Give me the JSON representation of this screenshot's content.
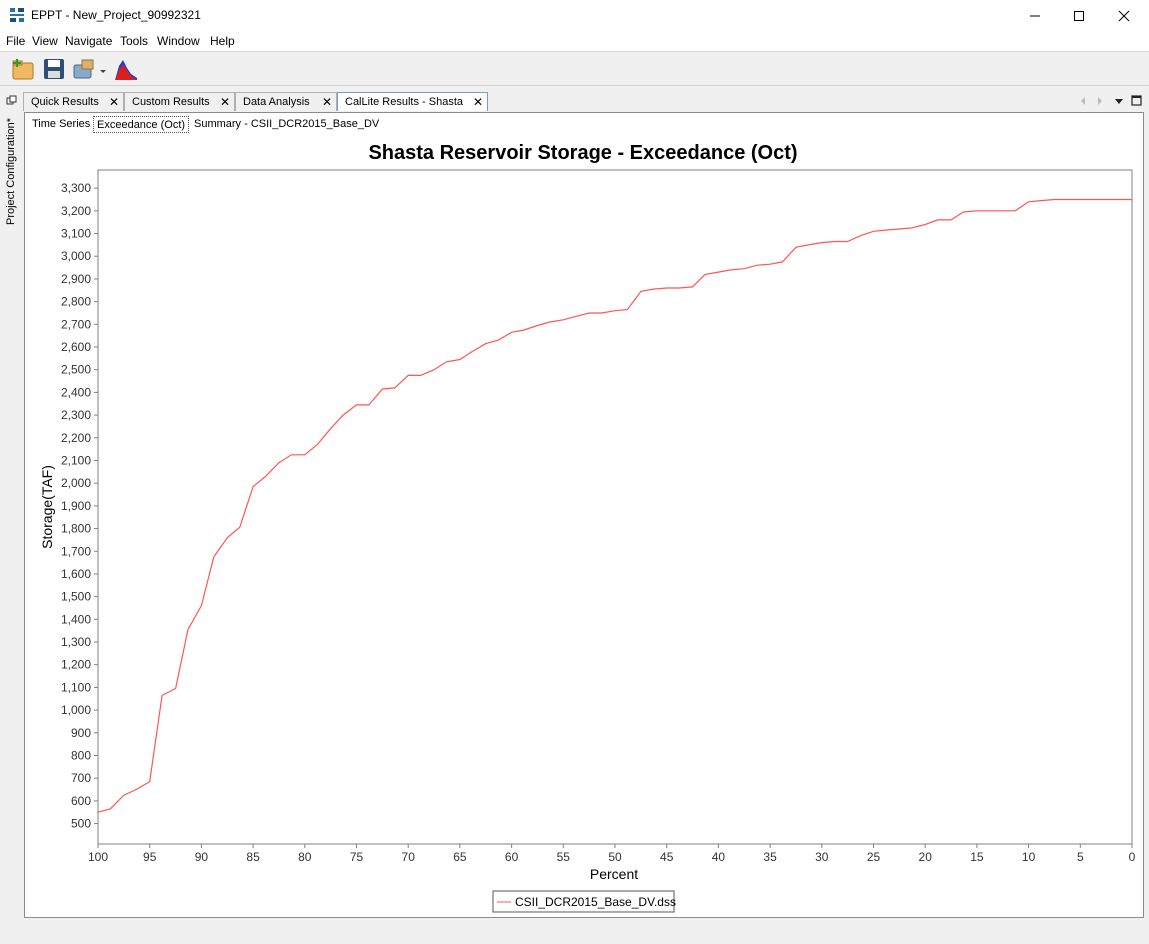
{
  "window": {
    "title": "EPPT - New_Project_90992321",
    "minimize_icon": "minimize-icon",
    "maximize_icon": "maximize-icon",
    "close_icon": "close-icon"
  },
  "menu": [
    "File",
    "View",
    "Navigate",
    "Tools",
    "Window",
    "Help"
  ],
  "toolbar": {
    "icons": [
      "new-project-icon",
      "save-icon",
      "open-project-icon",
      "dropdown-arrow-icon",
      "plot-icon"
    ]
  },
  "side_panel": {
    "label": "Project Configuration*"
  },
  "editor_tabs": [
    {
      "label": "Quick Results",
      "active": false
    },
    {
      "label": "Custom Results",
      "active": false
    },
    {
      "label": "Data Analysis",
      "active": false
    },
    {
      "label": "CalLite Results - Shasta",
      "active": true
    }
  ],
  "sub_tabs": [
    {
      "label": "Time Series",
      "active": false
    },
    {
      "label": "Exceedance (Oct)",
      "active": true
    },
    {
      "label": "Summary - CSII_DCR2015_Base_DV",
      "active": false
    }
  ],
  "chart_data": {
    "type": "line",
    "title": "Shasta Reservoir Storage - Exceedance (Oct)",
    "xlabel": "Percent",
    "ylabel": "Storage(TAF)",
    "xlim": [
      100,
      0
    ],
    "ylim": [
      410,
      3380
    ],
    "x_ticks": [
      100,
      95,
      90,
      85,
      80,
      75,
      70,
      65,
      60,
      55,
      50,
      45,
      40,
      35,
      30,
      25,
      20,
      15,
      10,
      5,
      0
    ],
    "y_ticks": [
      "500",
      "600",
      "700",
      "800",
      "900",
      "1,000",
      "1,100",
      "1,200",
      "1,300",
      "1,400",
      "1,500",
      "1,600",
      "1,700",
      "1,800",
      "1,900",
      "2,000",
      "2,100",
      "2,200",
      "2,300",
      "2,400",
      "2,500",
      "2,600",
      "2,700",
      "2,800",
      "2,900",
      "3,000",
      "3,100",
      "3,200",
      "3,300"
    ],
    "y_tick_values": [
      500,
      600,
      700,
      800,
      900,
      1000,
      1100,
      1200,
      1300,
      1400,
      1500,
      1600,
      1700,
      1800,
      1900,
      2000,
      2100,
      2200,
      2300,
      2400,
      2500,
      2600,
      2700,
      2800,
      2900,
      3000,
      3100,
      3200,
      3300
    ],
    "grid": false,
    "legend_position": "bottom",
    "series": [
      {
        "name": "CSII_DCR2015_Base_DV.dss",
        "color": "#ff5555",
        "x": [
          100,
          98.8,
          97.5,
          96.3,
          95,
          93.8,
          92.5,
          91.3,
          90,
          88.8,
          87.5,
          86.3,
          85,
          83.8,
          82.5,
          81.3,
          80,
          78.8,
          77.5,
          76.3,
          75,
          73.8,
          72.5,
          71.3,
          70,
          68.8,
          67.5,
          66.3,
          65,
          63.8,
          62.5,
          61.3,
          60,
          58.8,
          57.5,
          56.3,
          55,
          53.8,
          52.5,
          51.3,
          50,
          48.8,
          47.5,
          46.3,
          45,
          43.8,
          42.5,
          41.3,
          40,
          38.8,
          37.5,
          36.3,
          35,
          33.8,
          32.5,
          31.3,
          30,
          28.8,
          27.5,
          26.3,
          25,
          23.8,
          22.5,
          21.3,
          20,
          18.8,
          17.5,
          16.3,
          15,
          13.8,
          12.5,
          11.3,
          10,
          8.8,
          7.5,
          6.3,
          5,
          3.8,
          2.5,
          1.3,
          0
        ],
        "y": [
          550,
          565,
          625,
          650,
          685,
          1065,
          1095,
          1355,
          1460,
          1675,
          1760,
          1805,
          1985,
          2030,
          2090,
          2125,
          2125,
          2170,
          2240,
          2300,
          2345,
          2345,
          2415,
          2420,
          2475,
          2475,
          2500,
          2535,
          2545,
          2580,
          2615,
          2630,
          2665,
          2675,
          2695,
          2710,
          2720,
          2735,
          2750,
          2750,
          2760,
          2765,
          2845,
          2855,
          2860,
          2860,
          2865,
          2920,
          2930,
          2940,
          2945,
          2960,
          2965,
          2975,
          3040,
          3050,
          3060,
          3065,
          3065,
          3090,
          3110,
          3115,
          3120,
          3125,
          3140,
          3160,
          3160,
          3195,
          3200,
          3200,
          3200,
          3200,
          3240,
          3245,
          3250,
          3250,
          3250,
          3250,
          3250,
          3250,
          3250
        ]
      }
    ]
  }
}
